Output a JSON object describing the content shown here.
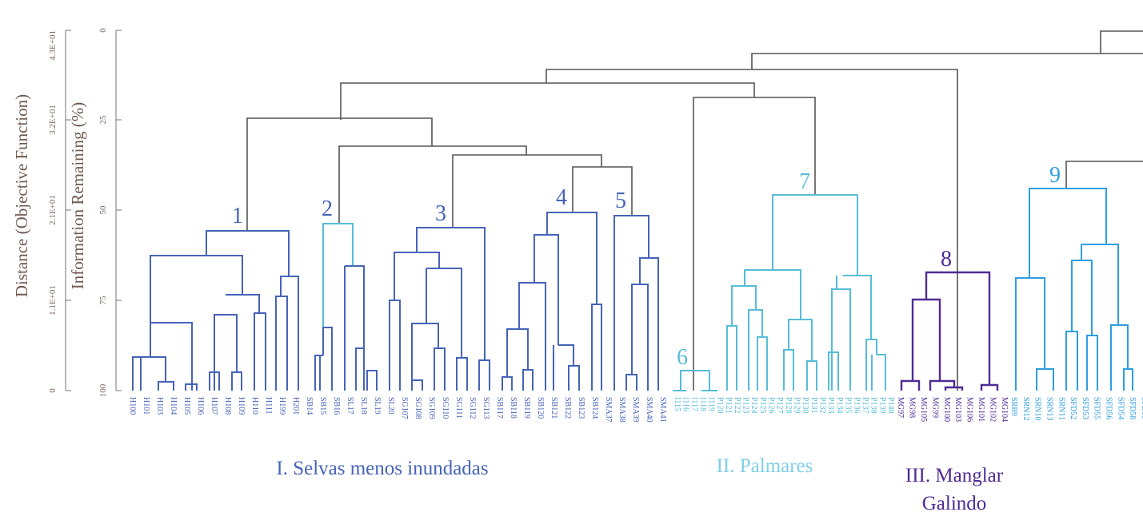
{
  "axes": {
    "left_title": "Distance (Objective Function)",
    "right_title": "Information Remaining (%)",
    "left_ticks": [
      "4.3E+01",
      "3.2E+01",
      "2.1E+01",
      "1.1E+01",
      "0"
    ],
    "right_ticks": [
      "0",
      "25",
      "50",
      "75",
      "100"
    ]
  },
  "clusters": {
    "c1": "1",
    "c2": "2",
    "c3": "3",
    "c4": "4",
    "c5": "5",
    "c6": "6",
    "c7": "7",
    "c8": "8",
    "c9": "9"
  },
  "groups": {
    "g1": "I. Selvas menos inundadas",
    "g2": "II. Palmares",
    "g3_line1": "III. Manglar",
    "g3_line2": "Galindo"
  },
  "leaves": {
    "group1": [
      "H100",
      "H101",
      "H103",
      "H104",
      "H105",
      "H106",
      "H107",
      "H108",
      "H109",
      "H110",
      "H111",
      "H199",
      "H201",
      "SB14",
      "SB15",
      "SB16",
      "SL17",
      "SL18",
      "SL19",
      "SL20",
      "SG107",
      "SG108",
      "SG109",
      "SG110",
      "SG111",
      "SG112",
      "SG113",
      "SB117",
      "SB118",
      "SB119",
      "SB120",
      "SB121",
      "SB122",
      "SB123",
      "SB124",
      "SMA37",
      "SMA38",
      "SMA39",
      "SMA40",
      "SMA41"
    ],
    "group2": [
      "I115",
      "I116",
      "I117",
      "I118",
      "I119",
      "P120",
      "P121",
      "P122",
      "P123",
      "P124",
      "P125",
      "P126",
      "P127",
      "P128",
      "P129",
      "P130",
      "P131",
      "P132",
      "P133",
      "P134",
      "P135",
      "P136",
      "P137",
      "P138",
      "P139",
      "P140"
    ],
    "group3": [
      "MG97",
      "MG98",
      "MG105",
      "MG99",
      "MG100",
      "MG103",
      "MG106",
      "MG101",
      "MG102",
      "MG104"
    ],
    "group4": [
      "SRB9",
      "SRN12",
      "SRN10",
      "SRN13",
      "SRN11",
      "SFD52",
      "SFD53",
      "SFD55",
      "SFD56",
      "SFD54",
      "SFD58",
      "SFD59"
    ]
  },
  "colors": {
    "group1": "#4563b8",
    "group2": "#57bcd9",
    "group3": "#4f2b96",
    "group4": "#2e9ee0",
    "axis_text": "#7a6a60"
  }
}
